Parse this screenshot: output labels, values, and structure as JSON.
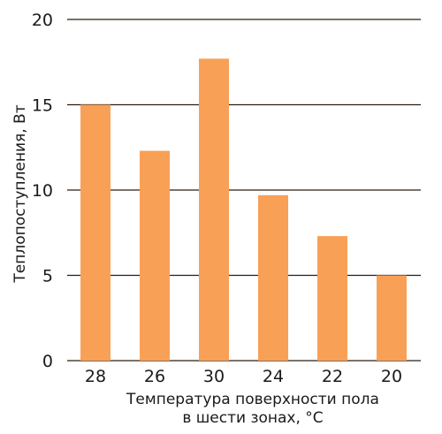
{
  "chart_data": {
    "type": "bar",
    "categories": [
      "28",
      "26",
      "30",
      "24",
      "22",
      "20"
    ],
    "values": [
      15.0,
      12.3,
      17.7,
      9.7,
      7.3,
      5.0
    ],
    "title": "",
    "xlabel_lines": [
      "Температура поверхности пола",
      "в шести зонах, °С"
    ],
    "ylabel": "Теплопоступления, Вт",
    "ylim": [
      0,
      20
    ],
    "yticks": [
      0,
      5,
      10,
      15,
      20
    ],
    "grid": "horizontal",
    "bar_color": "#f9a057",
    "grid_color": "#2b1d10"
  }
}
